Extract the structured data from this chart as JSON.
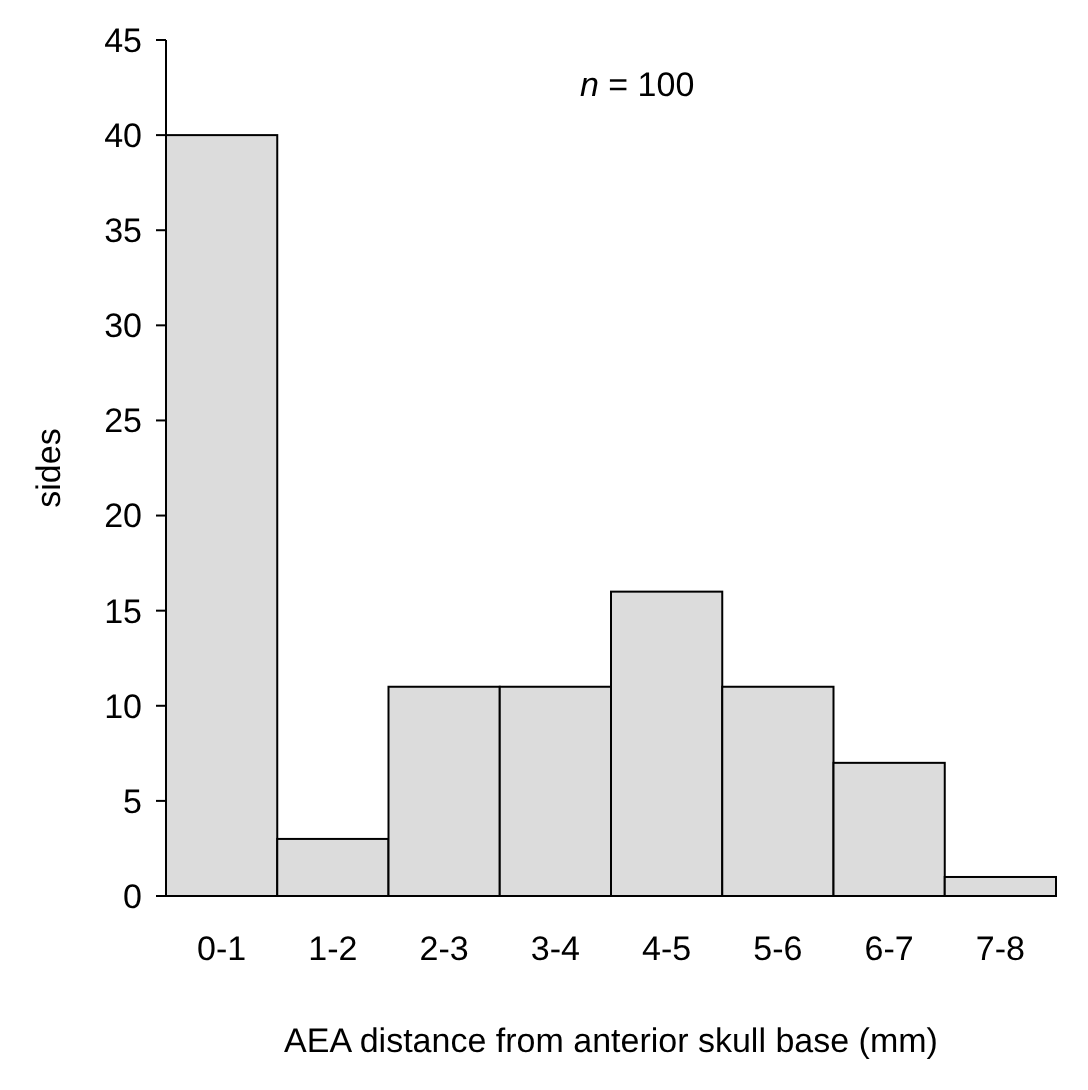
{
  "chart_data": {
    "type": "bar",
    "xlabel": "AEA distance from anterior skull base (mm)",
    "ylabel": "sides",
    "annotations": [
      "n = 100"
    ],
    "categories": [
      "0-1",
      "1-2",
      "2-3",
      "3-4",
      "4-5",
      "5-6",
      "6-7",
      "7-8"
    ],
    "values": [
      40,
      3,
      11,
      11,
      16,
      11,
      7,
      1
    ],
    "color": "#dcdcdc",
    "ylim": [
      0,
      45
    ],
    "yticks": [
      0,
      5,
      10,
      15,
      20,
      25,
      30,
      35,
      40,
      45
    ],
    "grid": false
  }
}
